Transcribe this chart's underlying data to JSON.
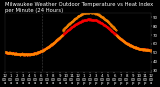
{
  "title": "Milwaukee Weather Outdoor Temperature vs Heat Index per Minute (24 Hours)",
  "bg_color": "#000000",
  "text_color": "#ffffff",
  "temp_color": "#ff0000",
  "heat_color": "#ff8800",
  "vline_color": "#888888",
  "ylim": [
    28,
    95
  ],
  "xlim": [
    0,
    1440
  ],
  "vline_x": 368,
  "title_fontsize": 3.8,
  "tick_fontsize": 2.8,
  "marker_size": 0.7,
  "yticks": [
    30,
    40,
    50,
    60,
    70,
    80,
    90
  ],
  "xtick_step": 60
}
